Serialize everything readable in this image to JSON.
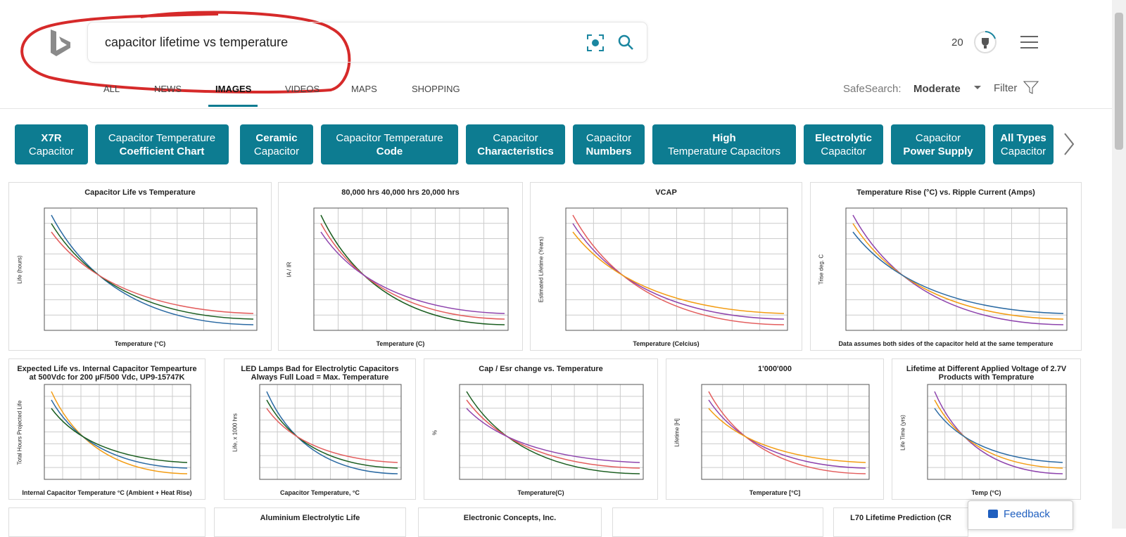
{
  "header": {
    "query": "capacitor lifetime vs temperature",
    "reward_count": "20"
  },
  "tabs": {
    "items": [
      "ALL",
      "NEWS",
      "IMAGES",
      "VIDEOS",
      "MAPS",
      "SHOPPING"
    ],
    "active": 2
  },
  "safesearch": {
    "label": "SafeSearch:",
    "value": "Moderate"
  },
  "filter": "Filter",
  "chips": [
    {
      "top": "X7R",
      "bottom": "Capacitor",
      "bold": "top"
    },
    {
      "top": "Capacitor Temperature",
      "bottom": "Coefficient Chart",
      "bold": "bottom"
    },
    {
      "top": "Ceramic",
      "bottom": "Capacitor",
      "bold": "top"
    },
    {
      "top": "Capacitor Temperature",
      "bottom": "Code",
      "bold": "bottom"
    },
    {
      "top": "Capacitor",
      "bottom": "Characteristics",
      "bold": "bottom"
    },
    {
      "top": "Capacitor",
      "bottom": "Numbers",
      "bold": "bottom"
    },
    {
      "top": "High",
      "bottom": "Temperature Capacitors",
      "bold": "top"
    },
    {
      "top": "Electrolytic",
      "bottom": "Capacitor",
      "bold": "top"
    },
    {
      "top": "Capacitor",
      "bottom": "Power Supply",
      "bold": "bottom"
    },
    {
      "top": "All Types",
      "bottom": "Capacitor",
      "bold": "top"
    }
  ],
  "thumbnails": [
    {
      "title": "Capacitor Life vs Temperature",
      "xlabel": "Temperature (°C)",
      "ylabel": "Life (hours)"
    },
    {
      "title": "80,000 hrs   40,000 hrs   20,000 hrs",
      "xlabel": "Temperature (C)",
      "ylabel": "IA / IR"
    },
    {
      "title": "VCAP",
      "xlabel": "Temperature (Celcius)",
      "ylabel": "Estimated Lifetime (Years)"
    },
    {
      "title": "Temperature Rise (°C) vs. Ripple Current (Amps)",
      "xlabel": "Data assumes both sides of the capacitor held at the same temperature",
      "ylabel": "Trise deg. C"
    },
    {
      "title": "Expected Life vs. Internal Capacitor Tempearture at 500Vdc for 200 µF/500 Vdc, UP9-15747K",
      "xlabel": "Internal Capacitor Temperature °C (Ambient + Heat Rise)",
      "ylabel": "Total Hours Projected Life"
    },
    {
      "title": "LED Lamps Bad for Electrolytic Capacitors Always Full Load = Max. Temperature",
      "xlabel": "Capacitor Temperature, °C",
      "ylabel": "Life, x 1000 hrs"
    },
    {
      "title": "Cap / Esr change vs. Temperature",
      "xlabel": "Temperature(C)",
      "ylabel": "%"
    },
    {
      "title": "1'000'000",
      "xlabel": "Temperature [°C]",
      "ylabel": "Lifetime [H]"
    },
    {
      "title": "Lifetime at Different Applied Voltage of 2.7V Products with Temprature",
      "xlabel": "Temp (°C)",
      "ylabel": "Life Time (yrs)"
    },
    {
      "title": "",
      "xlabel": "",
      "ylabel": ""
    },
    {
      "title": "Aluminium Electrolytic Life",
      "xlabel": "",
      "ylabel": ""
    },
    {
      "title": "Electronic Concepts, Inc.",
      "xlabel": "",
      "ylabel": ""
    },
    {
      "title": "",
      "xlabel": "",
      "ylabel": ""
    },
    {
      "title": "L70 Lifetime Prediction (CR",
      "xlabel": "",
      "ylabel": ""
    }
  ],
  "feedback": "Feedback"
}
